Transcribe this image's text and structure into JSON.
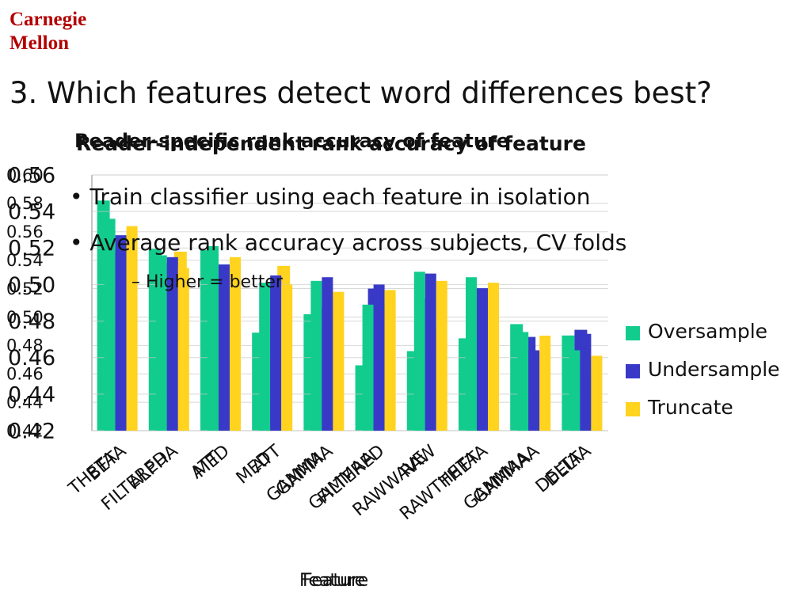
{
  "header": {
    "logo_line1": "Carnegie",
    "logo_line2": "Mellon",
    "slide_title": "3. Which features detect word differences best?"
  },
  "bullets": [
    "Train classifier using each feature in isolation",
    "Average rank accuracy across subjects, CV folds",
    "Higher = better"
  ],
  "chart_data": [
    {
      "type": "bar",
      "title": "Reader-independent rank accuracy of feature",
      "xlabel": "Feature",
      "ylabel": "",
      "ylim": [
        0.42,
        0.56
      ],
      "yticks": [
        "0.42",
        "0.44",
        "0.46",
        "0.48",
        "0.50",
        "0.52",
        "0.54",
        "0.56"
      ],
      "categories": [
        "BETA",
        "ALPHA",
        "MED",
        "ATT",
        "GAMMA",
        "FILTERED",
        "RAW",
        "THETA",
        "GAMMAA",
        "DELTA"
      ],
      "series": [
        {
          "name": "Oversample",
          "values": [
            0.536,
            0.516,
            0.521,
            0.501,
            0.502,
            0.489,
            0.507,
            0.504,
            0.474,
            0.464
          ]
        },
        {
          "name": "Undersample",
          "values": [
            0.527,
            0.515,
            0.511,
            0.505,
            0.504,
            0.5,
            0.506,
            0.498,
            0.464,
            0.473
          ]
        },
        {
          "name": "Truncate",
          "values": [
            0.532,
            0.509,
            0.515,
            0.5,
            0.496,
            0.497,
            0.502,
            0.501,
            0.472,
            0.461
          ]
        }
      ],
      "legend": "right",
      "grid": true
    },
    {
      "type": "bar",
      "title": "Reader-specific rank accuracy of feature",
      "xlabel": "Feature",
      "ylabel": "",
      "ylim": [
        0.42,
        0.6
      ],
      "yticks": [
        "0.42",
        "0.44",
        "0.46",
        "0.48",
        "0.50",
        "0.52",
        "0.54",
        "0.56",
        "0.58",
        "0.60"
      ],
      "categories": [
        "THETA",
        "FILTERED",
        "ATT",
        "MED",
        "GAMMA",
        "GAMMAA",
        "RAWWAVE",
        "RAWTHETA",
        "GAMMAA",
        "DELTA"
      ],
      "series": [
        {
          "name": "Oversample",
          "values": [
            0.582,
            0.548,
            0.547,
            0.489,
            0.502,
            0.466,
            0.476,
            0.485,
            0.495,
            0.487
          ]
        },
        {
          "name": "Undersample",
          "values": [
            0.547,
            0.538,
            0.477,
            0.522,
            0.507,
            0.52,
            0.513,
            0.512,
            0.486,
            0.491
          ]
        },
        {
          "name": "Truncate",
          "values": [
            0.549,
            0.546,
            0.499,
            0.536,
            0.506,
            0.509,
            0.492,
            0.494,
            0.474,
            0.463
          ]
        }
      ],
      "legend": "right",
      "grid": true
    }
  ],
  "colors": {
    "Oversample": "#12cc8e",
    "Undersample": "#3939c8",
    "Truncate": "#ffd31e",
    "grid": "#c8c8c8",
    "logo": "#b30000"
  }
}
